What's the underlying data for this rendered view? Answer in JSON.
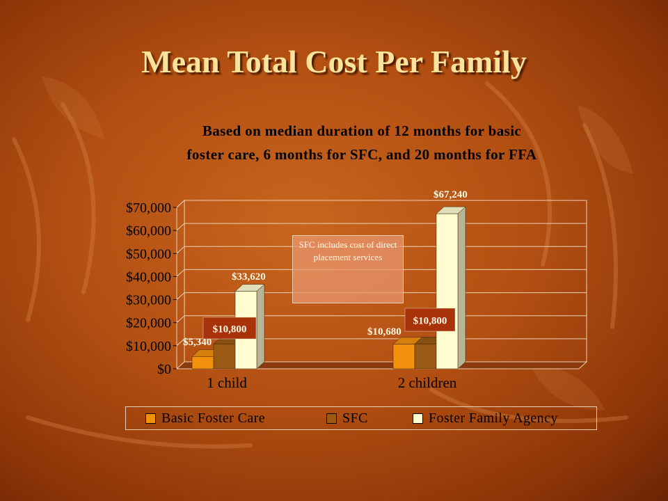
{
  "slide": {
    "title": "Mean Total Cost Per Family"
  },
  "chart_data": {
    "type": "bar",
    "title_lines": [
      "Based on median duration of 12 months for basic",
      "foster care, 6 months for SFC, and 20 months for FFA"
    ],
    "categories": [
      "1 child",
      "2 children"
    ],
    "series": [
      {
        "name": "Basic Foster Care",
        "color": "#f2920c",
        "values": [
          5340,
          10680
        ],
        "labels": [
          "$5,340",
          "$10,680"
        ]
      },
      {
        "name": "SFC",
        "color": "#9a5a14",
        "values": [
          10800,
          10800
        ],
        "labels": [
          "$10,800",
          "$10,800"
        ]
      },
      {
        "name": "Foster Family Agency",
        "color": "#fffcd0",
        "values": [
          33620,
          67240
        ],
        "labels": [
          "$33,620",
          "$67,240"
        ]
      }
    ],
    "ylim": [
      0,
      70000
    ],
    "yticks": [
      "$0",
      "$10,000",
      "$20,000",
      "$30,000",
      "$40,000",
      "$50,000",
      "$60,000",
      "$70,000"
    ],
    "grid": true,
    "legend_position": "bottom",
    "annotation": "SFC includes cost of direct placement services"
  }
}
